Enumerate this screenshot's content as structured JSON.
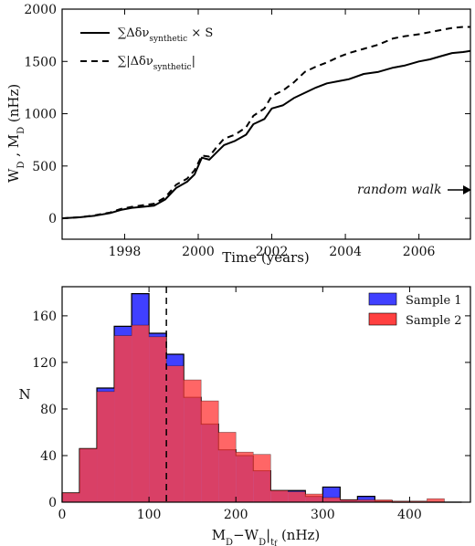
{
  "chart_data": [
    {
      "type": "line",
      "xlabel": "Time (years)",
      "ylabel": "W_D , M_D (nHz)",
      "xlim": [
        1996.3,
        2007.4
      ],
      "ylim": [
        -200,
        2000
      ],
      "xticks": [
        1998,
        2000,
        2002,
        2004,
        2006
      ],
      "yticks": [
        0,
        500,
        1000,
        1500,
        2000
      ],
      "tick_labels_x": [
        "1998",
        "2000",
        "2002",
        "2004",
        "2006"
      ],
      "tick_labels_y": [
        "0",
        "500",
        "1000",
        "1500",
        "2000"
      ],
      "legend_position": "top-left",
      "series": [
        {
          "name": "∑Δδν_synthetic × S",
          "style": "solid",
          "color": "#000000",
          "x": [
            1996.3,
            1996.8,
            1997.2,
            1997.6,
            1997.9,
            1998.2,
            1998.5,
            1998.8,
            1999.1,
            1999.4,
            1999.7,
            1999.9,
            2000.1,
            2000.3,
            2000.5,
            2000.7,
            2001.0,
            2001.3,
            2001.5,
            2001.8,
            2002.0,
            2002.3,
            2002.6,
            2002.9,
            2003.2,
            2003.5,
            2003.8,
            2004.1,
            2004.5,
            2004.9,
            2005.3,
            2005.6,
            2006.0,
            2006.3,
            2006.6,
            2006.9,
            2007.2,
            2007.4
          ],
          "y": [
            0,
            10,
            25,
            50,
            80,
            100,
            110,
            120,
            180,
            290,
            350,
            420,
            580,
            560,
            630,
            700,
            740,
            800,
            900,
            950,
            1050,
            1080,
            1150,
            1200,
            1250,
            1290,
            1310,
            1330,
            1380,
            1400,
            1440,
            1460,
            1500,
            1520,
            1550,
            1580,
            1590,
            1600
          ]
        },
        {
          "name": "∑|Δδν_synthetic|",
          "style": "dashed",
          "color": "#000000",
          "x": [
            1996.3,
            1996.8,
            1997.2,
            1997.6,
            1997.9,
            1998.2,
            1998.5,
            1998.8,
            1999.1,
            1999.4,
            1999.7,
            1999.9,
            2000.1,
            2000.3,
            2000.5,
            2000.7,
            2001.0,
            2001.3,
            2001.5,
            2001.8,
            2002.0,
            2002.3,
            2002.6,
            2002.9,
            2003.2,
            2003.5,
            2003.8,
            2004.1,
            2004.5,
            2004.9,
            2005.3,
            2005.6,
            2006.0,
            2006.3,
            2006.6,
            2006.9,
            2007.2,
            2007.4
          ],
          "y": [
            0,
            10,
            30,
            55,
            90,
            110,
            125,
            140,
            200,
            320,
            380,
            460,
            600,
            590,
            680,
            760,
            800,
            870,
            980,
            1050,
            1170,
            1220,
            1300,
            1400,
            1450,
            1490,
            1540,
            1580,
            1620,
            1660,
            1720,
            1740,
            1760,
            1780,
            1800,
            1820,
            1830,
            1830
          ]
        }
      ],
      "annotation": {
        "text": "random walk",
        "x": 2007.4,
        "y": 180
      }
    },
    {
      "type": "bar",
      "xlabel": "M_D − W_D|_tf (nHz)",
      "ylabel": "N",
      "xlim": [
        0,
        470
      ],
      "ylim": [
        0,
        185
      ],
      "xticks": [
        0,
        100,
        200,
        300,
        400
      ],
      "yticks": [
        0,
        40,
        80,
        120,
        160
      ],
      "tick_labels_x": [
        "0",
        "100",
        "200",
        "300",
        "400"
      ],
      "tick_labels_y": [
        "0",
        "40",
        "80",
        "120",
        "160"
      ],
      "legend_position": "top-right",
      "bin_edges": [
        0,
        20,
        40,
        60,
        80,
        100,
        120,
        140,
        160,
        180,
        200,
        220,
        240,
        260,
        280,
        300,
        320,
        340,
        360,
        380,
        400,
        420,
        440,
        460
      ],
      "series": [
        {
          "name": "Sample 1",
          "color": "#4040ff",
          "values": [
            8,
            46,
            98,
            151,
            179,
            145,
            127,
            90,
            67,
            45,
            40,
            27,
            10,
            10,
            5,
            13,
            2,
            5,
            1,
            0,
            0,
            0,
            0
          ]
        },
        {
          "name": "Sample 2",
          "color": "#ff4040",
          "values": [
            8,
            46,
            95,
            143,
            152,
            142,
            117,
            105,
            87,
            60,
            43,
            41,
            10,
            9,
            7,
            4,
            2,
            2,
            2,
            1,
            1,
            3,
            0
          ]
        }
      ],
      "vline_x": 120
    }
  ]
}
